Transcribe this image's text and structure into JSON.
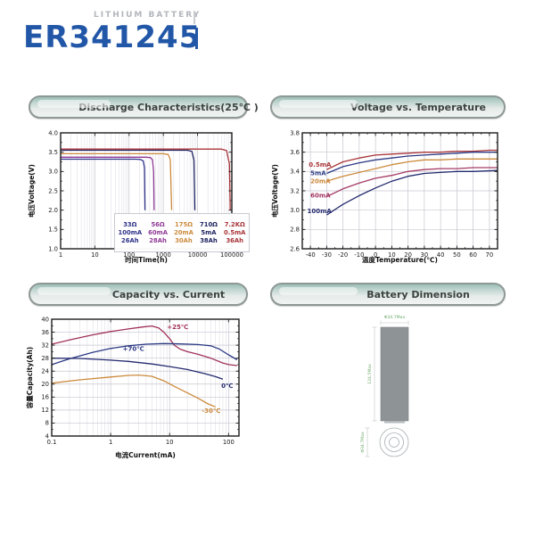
{
  "header": {
    "tagline": "LITHIUM BATTERY",
    "model": "ER341245"
  },
  "panels": {
    "discharge": "Discharge Characteristics(25℃ )",
    "voltage_temperature": "Voltage vs. Temperature",
    "capacity_current": "Capacity vs. Current",
    "battery_dimension": "Battery Dimension"
  },
  "dimension": {
    "diameter": "Φ34.7Max",
    "height": "124.5Max",
    "bottom_diameter": "Φ34.7Max"
  },
  "chart_data": [
    {
      "type": "line",
      "title": "Discharge Characteristics(25℃ )",
      "xscale": "log",
      "xmin": 1,
      "xmax": 100000,
      "ymin": 1.0,
      "ymax": 4.0,
      "xlabel": "时间Time(h)",
      "ylabel": "电压Voltage(V)",
      "grid": {
        "v": true,
        "vminor": true,
        "h": false
      },
      "yminor": 0.25,
      "xticks": [
        [
          1,
          "1"
        ],
        [
          10,
          "10"
        ],
        [
          100,
          "100"
        ],
        [
          1000,
          "1000"
        ],
        [
          10000,
          "10000"
        ],
        [
          100000,
          "100000"
        ]
      ],
      "yticks": [
        [
          1.0,
          "1.0"
        ],
        [
          1.5,
          "1.5"
        ],
        [
          2.0,
          "2.0"
        ],
        [
          2.5,
          "2.5"
        ],
        [
          3.0,
          "3.0"
        ],
        [
          3.5,
          "3.5"
        ],
        [
          4.0,
          "4.0"
        ]
      ],
      "series": [
        {
          "name": "33Ω 100mA 26Ah",
          "color": "#2d3188",
          "points": [
            [
              1,
              3.32
            ],
            [
              150,
              3.32
            ],
            [
              220,
              3.31
            ],
            [
              260,
              3.27
            ],
            [
              280,
              3.1
            ],
            [
              290,
              2.0
            ]
          ]
        },
        {
          "name": "56Ω 60mA 28Ah",
          "color": "#8f3a96",
          "points": [
            [
              1,
              3.37
            ],
            [
              300,
              3.37
            ],
            [
              420,
              3.36
            ],
            [
              480,
              3.3
            ],
            [
              520,
              3.0
            ],
            [
              540,
              2.0
            ]
          ]
        },
        {
          "name": "175Ω 20mA 30Ah",
          "color": "#cc8a3d",
          "points": [
            [
              1,
              3.46
            ],
            [
              1000,
              3.46
            ],
            [
              1400,
              3.44
            ],
            [
              1600,
              3.3
            ],
            [
              1750,
              2.0
            ]
          ]
        },
        {
          "name": "710Ω 5mA 38Ah",
          "color": "#1e2360",
          "points": [
            [
              1,
              3.55
            ],
            [
              5000,
              3.55
            ],
            [
              6800,
              3.52
            ],
            [
              7800,
              3.3
            ],
            [
              8300,
              2.0
            ]
          ]
        },
        {
          "name": "7.2KΩ 0.5mA 36Ah",
          "color": "#a93438",
          "points": [
            [
              1,
              3.58
            ],
            [
              50000,
              3.58
            ],
            [
              70000,
              3.54
            ],
            [
              85000,
              3.2
            ],
            [
              90000,
              2.0
            ]
          ]
        }
      ],
      "labels": [],
      "legend": [
        {
          "color": "#2d3188",
          "lines": [
            "33Ω",
            "100mA",
            "26Ah"
          ]
        },
        {
          "color": "#8f3a96",
          "lines": [
            "56Ω",
            "60mA",
            "28Ah"
          ]
        },
        {
          "color": "#cc8a3d",
          "lines": [
            "175Ω",
            "20mA",
            "30Ah"
          ]
        },
        {
          "color": "#1e2360",
          "lines": [
            "710Ω",
            "5mA",
            "38Ah"
          ]
        },
        {
          "color": "#a93438",
          "lines": [
            "7.2KΩ",
            "0.5mA",
            "36Ah"
          ]
        }
      ]
    },
    {
      "type": "line",
      "title": "Voltage vs. Temperature",
      "xscale": "linear",
      "xmin": -45,
      "xmax": 75,
      "ymin": 2.6,
      "ymax": 3.8,
      "xlabel": "温度Temperature(℃)",
      "ylabel": "电压Voltage(V)",
      "grid": {
        "v": true,
        "vminor": false,
        "h": true
      },
      "yminor": 0.1,
      "xminor": 5,
      "xticks": [
        [
          -40,
          "-40"
        ],
        [
          -30,
          "-30"
        ],
        [
          -20,
          "-20"
        ],
        [
          -10,
          "-10"
        ],
        [
          0,
          "0"
        ],
        [
          10,
          "10"
        ],
        [
          20,
          "20"
        ],
        [
          30,
          "30"
        ],
        [
          40,
          "40"
        ],
        [
          50,
          "50"
        ],
        [
          60,
          "60"
        ],
        [
          70,
          "70"
        ]
      ],
      "yticks": [
        [
          2.6,
          "2.6"
        ],
        [
          2.8,
          "2.8"
        ],
        [
          3.0,
          "3.0"
        ],
        [
          3.2,
          "3.2"
        ],
        [
          3.4,
          "3.4"
        ],
        [
          3.6,
          "3.6"
        ],
        [
          3.8,
          "3.8"
        ]
      ],
      "series": [
        {
          "name": "0.5mA",
          "color": "#a93438",
          "points": [
            [
              -30,
              3.42
            ],
            [
              -20,
              3.5
            ],
            [
              -10,
              3.54
            ],
            [
              0,
              3.57
            ],
            [
              10,
              3.58
            ],
            [
              20,
              3.59
            ],
            [
              30,
              3.6
            ],
            [
              40,
              3.6
            ],
            [
              50,
              3.61
            ],
            [
              60,
              3.61
            ],
            [
              70,
              3.62
            ],
            [
              75,
              3.62
            ]
          ]
        },
        {
          "name": "5mA",
          "color": "#2c3a84",
          "points": [
            [
              -30,
              3.38
            ],
            [
              -20,
              3.45
            ],
            [
              -10,
              3.49
            ],
            [
              0,
              3.52
            ],
            [
              10,
              3.54
            ],
            [
              20,
              3.56
            ],
            [
              30,
              3.57
            ],
            [
              40,
              3.58
            ],
            [
              50,
              3.59
            ],
            [
              60,
              3.6
            ],
            [
              75,
              3.6
            ]
          ]
        },
        {
          "name": "20mA",
          "color": "#cc8a3d",
          "points": [
            [
              -30,
              3.3
            ],
            [
              -20,
              3.35
            ],
            [
              -10,
              3.39
            ],
            [
              0,
              3.43
            ],
            [
              10,
              3.47
            ],
            [
              20,
              3.5
            ],
            [
              30,
              3.52
            ],
            [
              40,
              3.52
            ],
            [
              50,
              3.53
            ],
            [
              60,
              3.53
            ],
            [
              75,
              3.53
            ]
          ]
        },
        {
          "name": "60mA",
          "color": "#a53a64",
          "points": [
            [
              -30,
              3.14
            ],
            [
              -20,
              3.22
            ],
            [
              -10,
              3.28
            ],
            [
              0,
              3.33
            ],
            [
              10,
              3.36
            ],
            [
              20,
              3.4
            ],
            [
              30,
              3.42
            ],
            [
              40,
              3.43
            ],
            [
              50,
              3.43
            ],
            [
              60,
              3.44
            ],
            [
              75,
              3.44
            ]
          ]
        },
        {
          "name": "100mA",
          "color": "#232a6e",
          "points": [
            [
              -30,
              2.95
            ],
            [
              -20,
              3.06
            ],
            [
              -10,
              3.15
            ],
            [
              0,
              3.23
            ],
            [
              10,
              3.3
            ],
            [
              20,
              3.35
            ],
            [
              30,
              3.38
            ],
            [
              40,
              3.39
            ],
            [
              50,
              3.4
            ],
            [
              60,
              3.4
            ],
            [
              75,
              3.41
            ]
          ]
        }
      ],
      "labels": [
        {
          "text": "0.5mA",
          "x": -41,
          "y": 3.45,
          "color": "#a93438"
        },
        {
          "text": "5mA",
          "x": -40,
          "y": 3.36,
          "color": "#2c3a84"
        },
        {
          "text": "20mA",
          "x": -40,
          "y": 3.28,
          "color": "#cc8a3d"
        },
        {
          "text": "60mA",
          "x": -40,
          "y": 3.13,
          "color": "#a53a64"
        },
        {
          "text": "100mA",
          "x": -42,
          "y": 2.97,
          "color": "#232a6e"
        }
      ]
    },
    {
      "type": "line",
      "title": "Capacity vs. Current",
      "xscale": "log",
      "xmin": 0.1,
      "xmax": 150,
      "ymin": 4,
      "ymax": 40,
      "xlabel": "电流Current(mA)",
      "ylabel": "容量Capacity(Ah)",
      "grid": {
        "v": true,
        "vminor": true,
        "h": true
      },
      "yminor": 2,
      "xticks": [
        [
          0.1,
          "0.1"
        ],
        [
          1,
          "1"
        ],
        [
          10,
          "10"
        ],
        [
          100,
          "100"
        ]
      ],
      "yticks": [
        [
          4,
          "4"
        ],
        [
          8,
          "8"
        ],
        [
          12,
          "12"
        ],
        [
          16,
          "16"
        ],
        [
          20,
          "20"
        ],
        [
          24,
          "24"
        ],
        [
          28,
          "28"
        ],
        [
          32,
          "32"
        ],
        [
          36,
          "36"
        ],
        [
          40,
          "40"
        ]
      ],
      "series": [
        {
          "name": "+25℃",
          "color": "#a03058",
          "points": [
            [
              0.1,
              32.3
            ],
            [
              0.2,
              33.6
            ],
            [
              0.5,
              35.2
            ],
            [
              1,
              36.2
            ],
            [
              2,
              37.0
            ],
            [
              3.5,
              37.6
            ],
            [
              5,
              37.9
            ],
            [
              6.5,
              37.3
            ],
            [
              8,
              36.0
            ],
            [
              10,
              34.0
            ],
            [
              12,
              32.0
            ],
            [
              15,
              30.8
            ],
            [
              20,
              30.0
            ],
            [
              30,
              29.2
            ],
            [
              50,
              28.0
            ],
            [
              80,
              26.5
            ],
            [
              100,
              26.0
            ],
            [
              140,
              25.7
            ]
          ]
        },
        {
          "name": "+70℃",
          "color": "#2c3a84",
          "points": [
            [
              0.1,
              26.0
            ],
            [
              0.2,
              27.8
            ],
            [
              0.5,
              29.8
            ],
            [
              1,
              31.0
            ],
            [
              2,
              31.8
            ],
            [
              4,
              32.3
            ],
            [
              8,
              32.5
            ],
            [
              15,
              32.4
            ],
            [
              30,
              32.2
            ],
            [
              50,
              31.8
            ],
            [
              70,
              30.8
            ],
            [
              100,
              29.0
            ],
            [
              140,
              27.5
            ]
          ]
        },
        {
          "name": "0℃",
          "color": "#232a6e",
          "points": [
            [
              0.1,
              28.0
            ],
            [
              0.3,
              27.9
            ],
            [
              1,
              27.4
            ],
            [
              2,
              27.0
            ],
            [
              5,
              26.2
            ],
            [
              10,
              25.4
            ],
            [
              20,
              24.5
            ],
            [
              40,
              23.2
            ],
            [
              60,
              22.3
            ],
            [
              80,
              21.5
            ]
          ]
        },
        {
          "name": "-30℃",
          "color": "#cc8a3d",
          "points": [
            [
              0.1,
              20.3
            ],
            [
              0.3,
              21.3
            ],
            [
              1,
              22.2
            ],
            [
              2,
              22.7
            ],
            [
              3,
              22.8
            ],
            [
              5,
              22.4
            ],
            [
              8,
              21.0
            ],
            [
              12,
              19.3
            ],
            [
              20,
              17.3
            ],
            [
              30,
              15.7
            ],
            [
              45,
              13.9
            ],
            [
              60,
              13.0
            ]
          ]
        }
      ],
      "labels": [
        {
          "text": "+25℃",
          "x": 9,
          "y": 37.0,
          "color": "#a03058"
        },
        {
          "text": "+70℃",
          "x": 1.6,
          "y": 30.3,
          "color": "#2c3a84"
        },
        {
          "text": "0℃",
          "x": 75,
          "y": 18.8,
          "color": "#232a6e"
        },
        {
          "text": "-30℃",
          "x": 35,
          "y": 11.2,
          "color": "#cc8a3d"
        }
      ]
    }
  ]
}
